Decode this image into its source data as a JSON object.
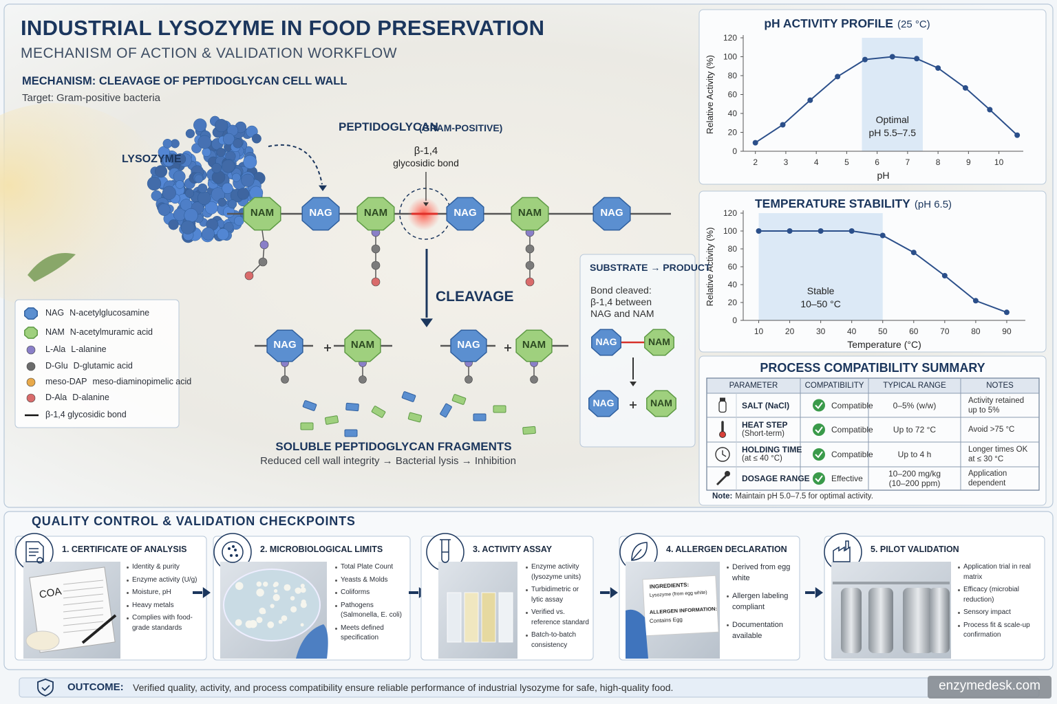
{
  "header": {
    "title": "INDUSTRIAL LYSOZYME IN FOOD PRESERVATION",
    "subtitle": "MECHANISM OF ACTION & VALIDATION WORKFLOW"
  },
  "mechanism": {
    "heading": "MECHANISM: CLEAVAGE OF PEPTIDOGLYCAN CELL WALL",
    "target": "Target: Gram-positive bacteria",
    "lysozyme_label": "LYSOZYME",
    "peptidoglycan_label": "PEPTIDOGLYCAN",
    "peptidoglycan_note": "(GRAM-POSITIVE)",
    "bond_label": "β-1,4",
    "bond_note": "glycosidic bond",
    "cleavage": "CLEAVAGE",
    "chain": [
      "NAM",
      "NAG",
      "NAM",
      "NAG",
      "NAM",
      "NAG"
    ],
    "fragments": [
      "NAG",
      "NAM",
      "NAG",
      "NAM"
    ],
    "fragments_title": "SOLUBLE PEPTIDOGLYCAN FRAGMENTS",
    "fragments_note": "Reduced cell wall integrity → Bacterial lysis → Inhibition"
  },
  "legend": {
    "items": [
      {
        "symbol": "NAG",
        "name": "N-acetylglucosamine"
      },
      {
        "symbol": "NAM",
        "name": "N-acetylmuramic acid"
      },
      {
        "symbol": "L-Ala",
        "name": "L-alanine"
      },
      {
        "symbol": "D-Glu",
        "name": "D-glutamic acid"
      },
      {
        "symbol": "meso-DAP",
        "name": "meso-diaminopimelic acid"
      },
      {
        "symbol": "D-Ala",
        "name": "D-alanine"
      },
      {
        "symbol": "β-1,4 glycosidic bond",
        "name": null
      }
    ]
  },
  "substrate_product": {
    "title": "SUBSTRATE → PRODUCT",
    "lines": [
      "Bond cleaved:",
      "β-1,4 between",
      "NAG and NAM"
    ],
    "substrate": [
      "NAG",
      "NAM"
    ],
    "product": [
      "NAG",
      "NAM"
    ]
  },
  "chart_data": [
    {
      "type": "line",
      "title": "pH ACTIVITY PROFILE",
      "subtitle": "(25 °C)",
      "x": [
        2,
        2.9,
        3.8,
        4.7,
        5.6,
        6.5,
        7.3,
        8,
        8.9,
        9.7,
        10.6
      ],
      "values": [
        9,
        28,
        54,
        79,
        97,
        100,
        98,
        88,
        67,
        44,
        17
      ],
      "color": "#2b4f8a",
      "xlim": [
        1.6,
        10.8
      ],
      "xticks": [
        2,
        3,
        4,
        5,
        6,
        7,
        8,
        9,
        10
      ],
      "ylim": [
        0,
        120
      ],
      "yticks": [
        0,
        20,
        40,
        60,
        80,
        100,
        120
      ],
      "xlabel": "pH",
      "ylabel": "Relative Activity (%)",
      "grid": false,
      "band": {
        "range": [
          5.5,
          7.5
        ],
        "label": "Optimal",
        "sublabel": "pH 5.5–7.5",
        "color": "#dce9f6"
      }
    },
    {
      "type": "line",
      "title": "TEMPERATURE STABILITY",
      "subtitle": "(pH 6.5)",
      "x": [
        10,
        20,
        30,
        40,
        50,
        60,
        70,
        80,
        90
      ],
      "values": [
        100,
        100,
        100,
        100,
        95,
        76,
        50,
        22,
        9
      ],
      "color": "#2b4f8a",
      "xlim": [
        5,
        96
      ],
      "xticks": [
        10,
        20,
        30,
        40,
        50,
        60,
        70,
        80,
        90
      ],
      "ylim": [
        0,
        120
      ],
      "yticks": [
        0,
        20,
        40,
        60,
        80,
        100,
        120
      ],
      "xlabel": "Temperature (°C)",
      "ylabel": "Relative Activity (%)",
      "grid": false,
      "band": {
        "range": [
          10,
          50
        ],
        "label": "Stable",
        "sublabel": "10–50 °C",
        "color": "#dce9f6"
      }
    }
  ],
  "compatibility": {
    "title": "PROCESS COMPATIBILITY SUMMARY",
    "columns": [
      "PARAMETER",
      "COMPATIBILITY",
      "TYPICAL RANGE",
      "NOTES"
    ],
    "rows": [
      {
        "parameter": "SALT (NaCl)",
        "detail": null,
        "status": "Compatible",
        "range": "0–5% (w/w)",
        "range_detail": null,
        "notes": "Activity retained up to 5%"
      },
      {
        "parameter": "HEAT STEP",
        "detail": "(Short-term)",
        "status": "Compatible",
        "range": "Up to 72 °C",
        "range_detail": null,
        "notes": "Avoid >75 °C"
      },
      {
        "parameter": "HOLDING TIME",
        "detail": "(at ≤ 40 °C)",
        "status": "Compatible",
        "range": "Up to 4 h",
        "range_detail": null,
        "notes": "Longer times OK at ≤ 30 °C"
      },
      {
        "parameter": "DOSAGE RANGE",
        "detail": null,
        "status": "Effective",
        "range": "10–200 mg/kg",
        "range_detail": "(10–200 ppm)",
        "notes": "Application dependent"
      }
    ],
    "note_label": "Note:",
    "note": "Maintain pH 5.0–7.5 for optimal activity."
  },
  "qc": {
    "title": "QUALITY CONTROL & VALIDATION CHECKPOINTS",
    "steps": [
      {
        "title": "1. CERTIFICATE OF ANALYSIS",
        "items": [
          "Identity & purity",
          "Enzyme activity (U/g)",
          "Moisture, pH",
          "Heavy metals",
          "Complies with food-grade standards"
        ]
      },
      {
        "title": "2. MICROBIOLOGICAL LIMITS",
        "items": [
          "Total Plate Count",
          "Yeasts & Molds",
          "Coliforms",
          "Pathogens (Salmonella, E. coli)",
          "Meets defined specification"
        ]
      },
      {
        "title": "3. ACTIVITY ASSAY",
        "items": [
          "Enzyme activity (lysozyme units)",
          "Turbidimetric or lytic assay",
          "Verified vs. reference standard",
          "Batch-to-batch consistency"
        ]
      },
      {
        "title": "4. ALLERGEN DECLARATION",
        "items": [
          "Derived from egg white",
          "Allergen labeling compliant",
          "Documentation available"
        ]
      },
      {
        "title": "5. PILOT VALIDATION",
        "items": [
          "Application trial in real matrix",
          "Efficacy (microbial reduction)",
          "Sensory impact",
          "Process fit & scale-up confirmation"
        ]
      }
    ],
    "coa_label": "COA",
    "allergen_card": [
      "INGREDIENTS:",
      "Lysozyme (from egg white)",
      "ALLERGEN INFORMATION:",
      "Contains Egg"
    ]
  },
  "outcome": {
    "label": "OUTCOME:",
    "text": "Verified quality, activity, and process compatibility ensure reliable performance of industrial lysozyme for safe, high-quality food."
  },
  "watermark": "enzymedesk.com"
}
